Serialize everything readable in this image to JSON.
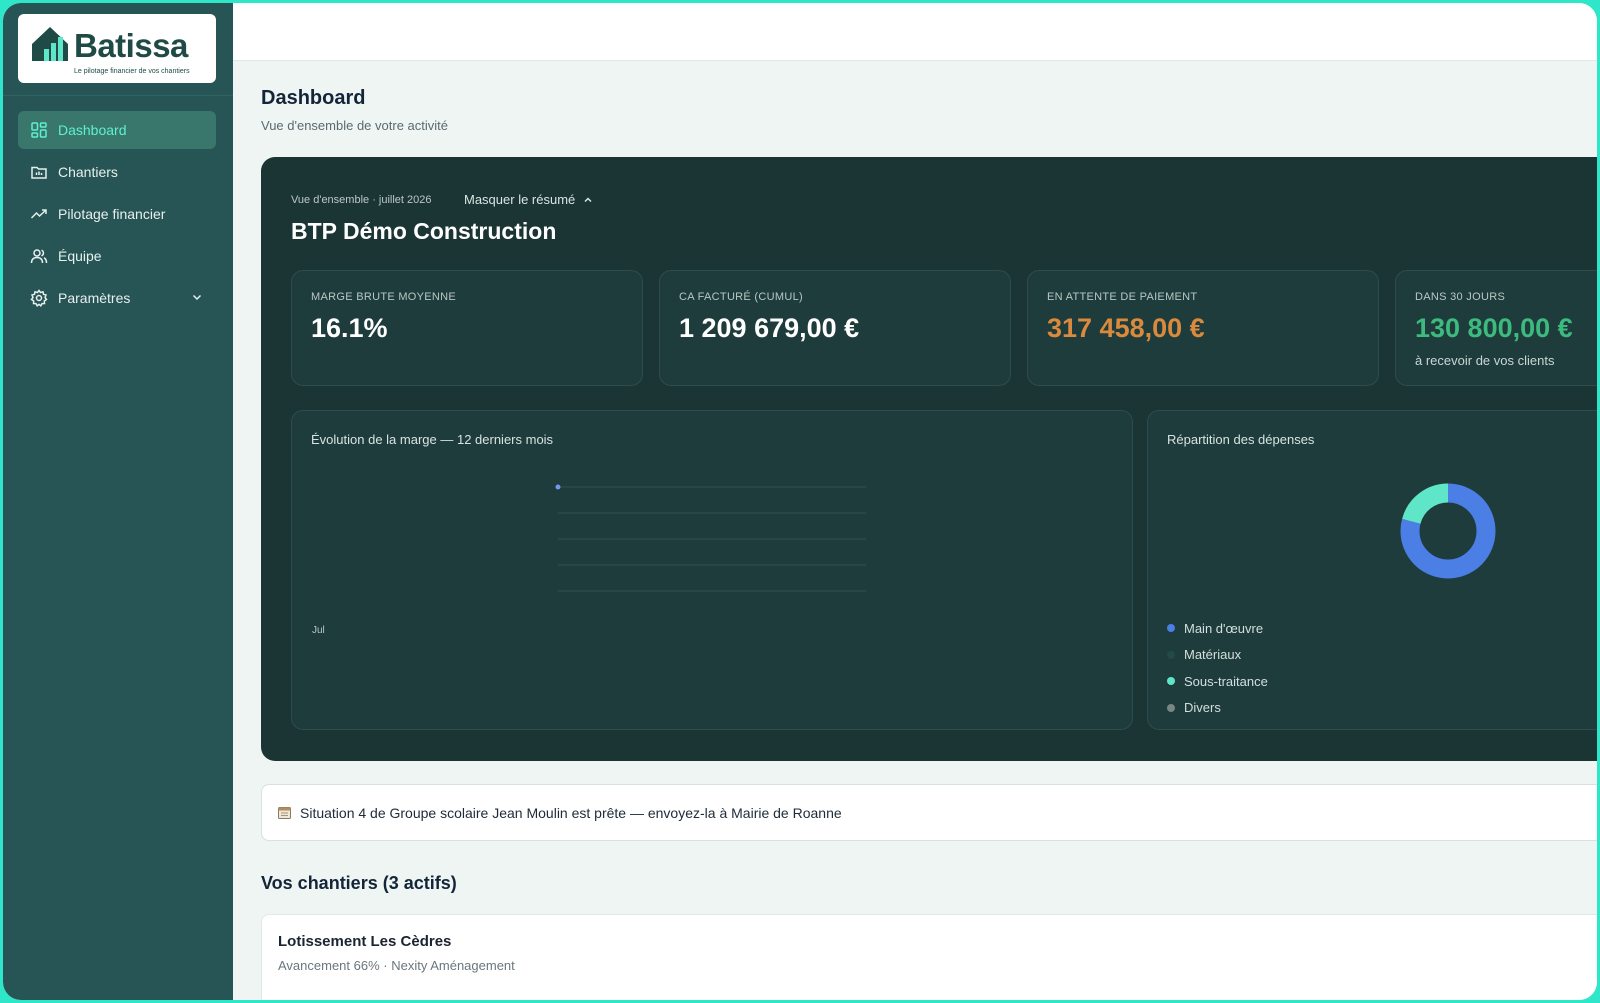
{
  "brand": {
    "name": "Batissa",
    "tagline": "Le pilotage financier de vos chantiers"
  },
  "sidebar": {
    "items": [
      {
        "label": "Dashboard",
        "icon": "dashboard-icon",
        "active": true
      },
      {
        "label": "Chantiers",
        "icon": "folder-icon"
      },
      {
        "label": "Pilotage financier",
        "icon": "trend-icon"
      },
      {
        "label": "Équipe",
        "icon": "users-icon"
      },
      {
        "label": "Paramètres",
        "icon": "gear-icon",
        "expandable": true
      }
    ]
  },
  "header": {
    "title": "Dashboard",
    "subtitle": "Vue d'ensemble de votre activité"
  },
  "summary": {
    "kicker": "Vue d'ensemble · juillet 2026",
    "toggle_label": "Masquer le résumé",
    "company": "BTP Démo Construction",
    "kpis": [
      {
        "label": "MARGE BRUTE MOYENNE",
        "value": "16.1%"
      },
      {
        "label": "CA FACTURÉ (CUMUL)",
        "value": "1 209 679,00 €"
      },
      {
        "label": "EN ATTENTE DE PAIEMENT",
        "value": "317 458,00 €"
      },
      {
        "label": "DANS 30 JOURS",
        "value": "130 800,00 €",
        "note": "à recevoir de vos clients"
      }
    ],
    "margin_chart": {
      "title": "Évolution de la marge — 12 derniers mois",
      "x_label": "Jul"
    },
    "expense_chart": {
      "title": "Répartition des dépenses",
      "legend": [
        {
          "label": "Main d'œuvre",
          "color": "#4b7fe6"
        },
        {
          "label": "Matériaux",
          "color": "#244a44"
        },
        {
          "label": "Sous-traitance",
          "color": "#5fe6c8"
        },
        {
          "label": "Divers",
          "color": "#7a8686"
        }
      ]
    }
  },
  "chart_data": [
    {
      "type": "line",
      "title": "Évolution de la marge — 12 derniers mois",
      "categories": [
        "Jul"
      ],
      "series": [
        {
          "values": [
            16.1
          ]
        }
      ]
    },
    {
      "type": "pie",
      "title": "Répartition des dépenses",
      "categories": [
        "Main d'œuvre",
        "Matériaux",
        "Sous-traitance",
        "Divers"
      ],
      "values": [
        79,
        0,
        21,
        0
      ],
      "colors": [
        "#4b7fe6",
        "#244a44",
        "#5fe6c8",
        "#7a8686"
      ]
    }
  ],
  "notice": {
    "icon": "calendar-icon",
    "text": "Situation 4 de Groupe scolaire Jean Moulin est prête — envoyez-la à Mairie de Roanne"
  },
  "projects": {
    "title": "Vos chantiers (3 actifs)",
    "items": [
      {
        "name": "Lotissement Les Cèdres",
        "meta": "Avancement 66% · Nexity Aménagement"
      }
    ]
  }
}
